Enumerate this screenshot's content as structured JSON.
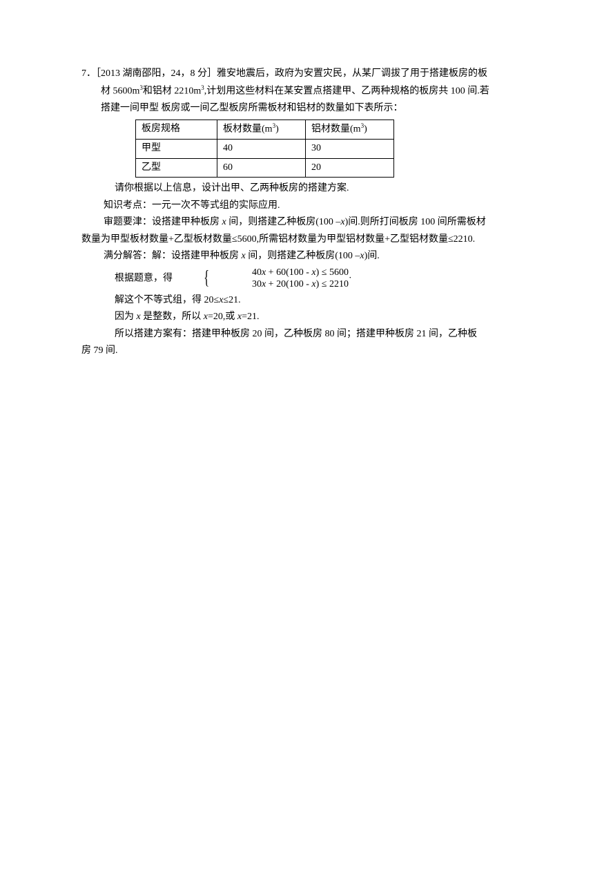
{
  "problem": {
    "number": "7．",
    "source": "［2013 湖南邵阳，24，8 分］",
    "line1": "雅安地震后，政府为安置灾民，从某厂调拔了用于搭建板房的板",
    "line2": "材 5600m",
    "line2b": "和铝材 2210m",
    "line2c": ",计划用这些材料在某安置点搭建甲、乙两种规格的板房共 100 间.若",
    "line3": "搭建一间甲型 板房或一间乙型板房所需板材和铝材的数量如下表所示："
  },
  "table": {
    "headers": [
      "板房规格",
      "板材数量(m",
      "铝材数量(m"
    ],
    "row1": [
      "甲型",
      "40",
      "30"
    ],
    "row2": [
      "乙型",
      "60",
      "20"
    ]
  },
  "solution": {
    "question": "请你根据以上信息，设计出甲、乙两种板房的搭建方案.",
    "point_label": "知识考点：",
    "point": "一元一次不等式组的实际应用.",
    "key_label": "审题要津：",
    "key1": "设搭建甲种板房 ",
    "key1b": " 间，则搭建乙种板房(100 –",
    "key1c": ")间.则所打间板房 100 间所需板材",
    "key2": "数量为甲型板材数量+乙型板材数量≤5600,所需铝材数量为甲型铝材数量+乙型铝材数量≤2210.",
    "answer_label": "满分解答：",
    "ans1": "解：设搭建甲种板房 ",
    "ans1b": " 间，则搭建乙种板房(100 –",
    "ans1c": ")间.",
    "ans2": "根据题意，得",
    "ineq1a": "40",
    "ineq1b": " + 60(100 - ",
    "ineq1c": ") ≤ 5600",
    "ineq2a": "30",
    "ineq2b": " + 20(100 -  ",
    "ineq2c": ") ≤ 2210",
    "period": "·",
    "ans3": "解这个不等式组，得 20≤",
    "ans3b": "≤21.",
    "ans4": "因为 ",
    "ans4b": " 是整数，所以 ",
    "ans4c": "=20,或 ",
    "ans4d": "=21.",
    "ans5": "所以搭建方案有：搭建甲种板房 20 间，乙种板房 80 间；搭建甲种板房 21 间，乙种板",
    "ans6": "房 79 间."
  },
  "var": "x"
}
